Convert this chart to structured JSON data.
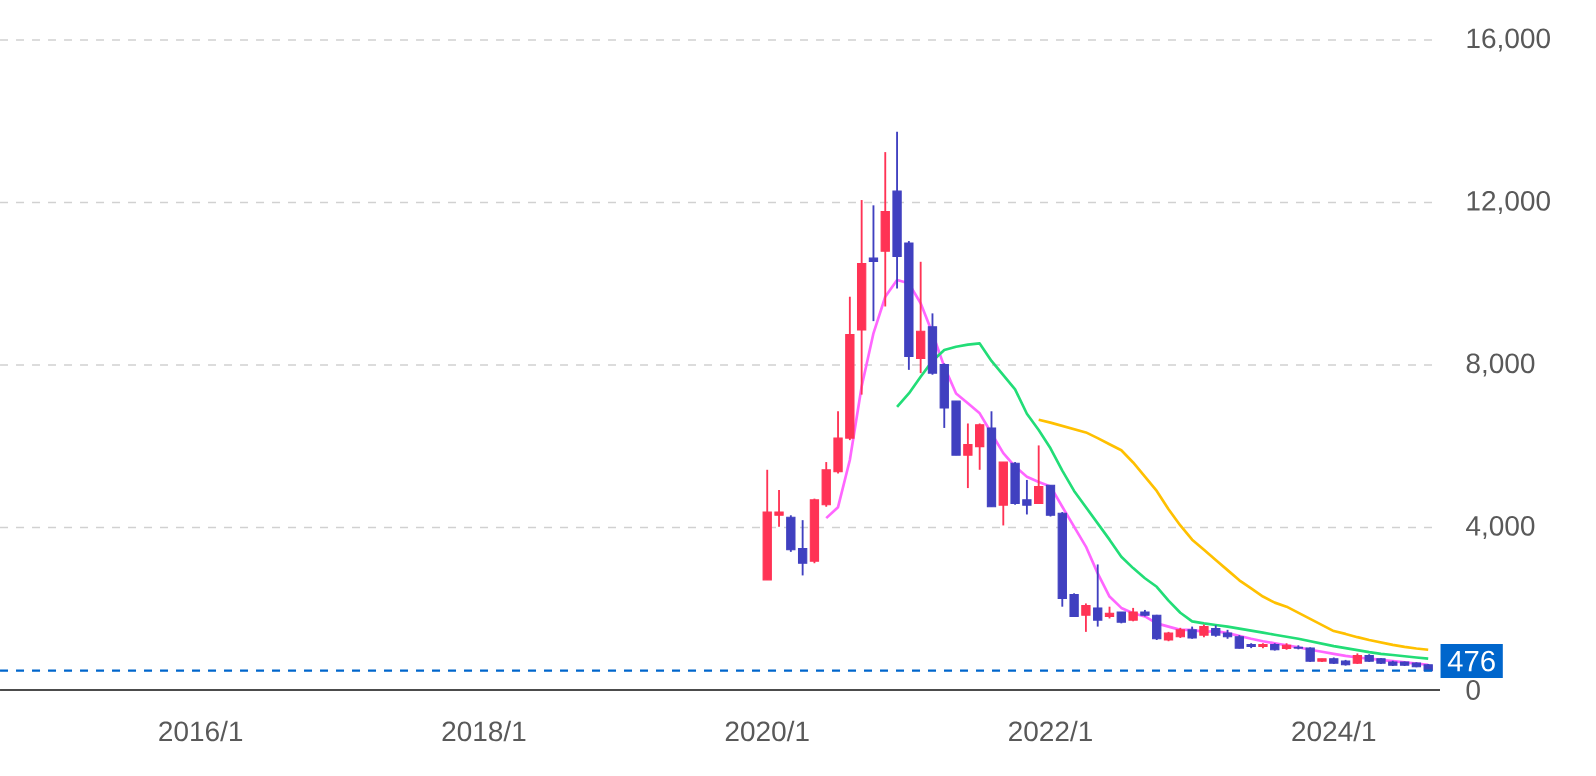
{
  "chart_data": {
    "type": "candlestick",
    "x": [
      "2020-01",
      "2020-02",
      "2020-03",
      "2020-04",
      "2020-05",
      "2020-06",
      "2020-07",
      "2020-08",
      "2020-09",
      "2020-10",
      "2020-11",
      "2020-12",
      "2021-01",
      "2021-02",
      "2021-03",
      "2021-04",
      "2021-05",
      "2021-06",
      "2021-07",
      "2021-08",
      "2021-09",
      "2021-10",
      "2021-11",
      "2021-12",
      "2022-01",
      "2022-02",
      "2022-03",
      "2022-04",
      "2022-05",
      "2022-06",
      "2022-07",
      "2022-08",
      "2022-09",
      "2022-10",
      "2022-11",
      "2022-12",
      "2023-01",
      "2023-02",
      "2023-03",
      "2023-04",
      "2023-05",
      "2023-06",
      "2023-07",
      "2023-08",
      "2023-09",
      "2023-10",
      "2023-11",
      "2023-12",
      "2024-01",
      "2024-02",
      "2024-03",
      "2024-04",
      "2024-05",
      "2024-06",
      "2024-07",
      "2024-08",
      "2024-09"
    ],
    "series": [
      {
        "ohlc": [
          [
            2710,
            5420,
            2710,
            4380
          ],
          [
            4300,
            4920,
            4020,
            4380
          ],
          [
            4250,
            4300,
            3400,
            3450
          ],
          [
            3480,
            4180,
            2820,
            3120
          ],
          [
            3170,
            4710,
            3120,
            4680
          ],
          [
            4560,
            5610,
            4510,
            5420
          ],
          [
            5370,
            6860,
            5330,
            6200
          ],
          [
            6200,
            9680,
            6150,
            8750
          ],
          [
            8860,
            12060,
            7270,
            10500
          ],
          [
            10630,
            11930,
            9080,
            10550
          ],
          [
            10800,
            13240,
            9440,
            11780
          ],
          [
            12280,
            13740,
            9880,
            10670
          ],
          [
            11000,
            11050,
            7880,
            8210
          ],
          [
            8160,
            10540,
            7800,
            8830
          ],
          [
            8940,
            9270,
            7760,
            7800
          ],
          [
            8010,
            8040,
            6450,
            6940
          ],
          [
            7110,
            7110,
            5780,
            5780
          ],
          [
            5780,
            6560,
            4970,
            6040
          ],
          [
            5990,
            6560,
            5420,
            6530
          ],
          [
            6450,
            6860,
            4510,
            4510
          ],
          [
            4550,
            5610,
            4050,
            5610
          ],
          [
            5580,
            5610,
            4560,
            4590
          ],
          [
            4680,
            5170,
            4320,
            4550
          ],
          [
            4590,
            6020,
            4590,
            5010
          ],
          [
            5040,
            5040,
            4270,
            4300
          ],
          [
            4350,
            4380,
            2050,
            2250
          ],
          [
            2350,
            2380,
            1810,
            1810
          ],
          [
            1840,
            2130,
            1430,
            2080
          ],
          [
            2020,
            3090,
            1560,
            1720
          ],
          [
            1810,
            2050,
            1760,
            1890
          ],
          [
            1920,
            1920,
            1640,
            1670
          ],
          [
            1720,
            2020,
            1690,
            1920
          ],
          [
            1920,
            1970,
            1810,
            1840
          ],
          [
            1840,
            1850,
            1230,
            1260
          ],
          [
            1230,
            1430,
            1200,
            1400
          ],
          [
            1310,
            1530,
            1280,
            1480
          ],
          [
            1480,
            1560,
            1260,
            1280
          ],
          [
            1350,
            1610,
            1300,
            1560
          ],
          [
            1510,
            1590,
            1310,
            1350
          ],
          [
            1400,
            1480,
            1260,
            1310
          ],
          [
            1310,
            1350,
            1020,
            1030
          ],
          [
            1120,
            1150,
            1030,
            1070
          ],
          [
            1070,
            1150,
            1030,
            1120
          ],
          [
            1120,
            1150,
            970,
            990
          ],
          [
            1020,
            1150,
            990,
            1100
          ],
          [
            1050,
            1100,
            1000,
            1030
          ],
          [
            1030,
            1050,
            690,
            710
          ],
          [
            710,
            770,
            690,
            770
          ],
          [
            770,
            800,
            640,
            660
          ],
          [
            710,
            740,
            600,
            620
          ],
          [
            660,
            900,
            640,
            850
          ],
          [
            850,
            880,
            690,
            710
          ],
          [
            770,
            790,
            640,
            660
          ],
          [
            690,
            720,
            590,
            610
          ],
          [
            690,
            700,
            590,
            610
          ],
          [
            660,
            680,
            560,
            570
          ],
          [
            620,
            640,
            470,
            476
          ]
        ],
        "colors": [
          "#ff3355",
          "#ff3355",
          "#4040c0",
          "#4040c0",
          "#ff3355",
          "#ff3355",
          "#ff3355",
          "#ff3355",
          "#ff3355",
          "#4040c0",
          "#ff3355",
          "#4040c0",
          "#4040c0",
          "#ff3355",
          "#4040c0",
          "#4040c0",
          "#4040c0",
          "#ff3355",
          "#ff3355",
          "#4040c0",
          "#ff3355",
          "#4040c0",
          "#4040c0",
          "#ff3355",
          "#4040c0",
          "#4040c0",
          "#4040c0",
          "#ff3355",
          "#4040c0",
          "#ff3355",
          "#4040c0",
          "#ff3355",
          "#4040c0",
          "#4040c0",
          "#ff3355",
          "#ff3355",
          "#4040c0",
          "#ff3355",
          "#4040c0",
          "#4040c0",
          "#4040c0",
          "#4040c0",
          "#ff3355",
          "#4040c0",
          "#ff3355",
          "#4040c0",
          "#4040c0",
          "#ff3355",
          "#4040c0",
          "#4040c0",
          "#ff3355",
          "#4040c0",
          "#4040c0",
          "#4040c0",
          "#4040c0",
          "#4040c0",
          "#4040c0"
        ]
      },
      {
        "type": "line",
        "color": "#ff66ff",
        "values": [
          null,
          null,
          null,
          null,
          null,
          4230,
          4500,
          5660,
          7470,
          8780,
          9680,
          10090,
          10010,
          9520,
          8780,
          7960,
          7300,
          7060,
          6810,
          6320,
          5830,
          5500,
          5250,
          5120,
          5010,
          4510,
          4020,
          3530,
          2870,
          2300,
          2020,
          1890,
          1810,
          1640,
          1560,
          1480,
          1480,
          1430,
          1450,
          1400,
          1330,
          1260,
          1200,
          1150,
          1100,
          1050,
          990,
          940,
          890,
          840,
          800,
          770,
          740,
          710,
          680,
          650,
          620
        ]
      },
      {
        "type": "line",
        "color": "#22dd77",
        "values": [
          null,
          null,
          null,
          null,
          null,
          null,
          null,
          null,
          null,
          null,
          null,
          6970,
          7300,
          7710,
          8100,
          8370,
          8450,
          8500,
          8530,
          8100,
          7750,
          7400,
          6800,
          6400,
          5950,
          5400,
          4900,
          4500,
          4100,
          3700,
          3280,
          3000,
          2750,
          2540,
          2200,
          1900,
          1690,
          1640,
          1600,
          1560,
          1510,
          1460,
          1410,
          1360,
          1310,
          1260,
          1200,
          1140,
          1080,
          1030,
          980,
          930,
          890,
          860,
          830,
          800,
          770
        ]
      },
      {
        "type": "line",
        "color": "#ffc000",
        "values": [
          null,
          null,
          null,
          null,
          null,
          null,
          null,
          null,
          null,
          null,
          null,
          null,
          null,
          null,
          null,
          null,
          null,
          null,
          null,
          null,
          null,
          null,
          null,
          6650,
          6580,
          6500,
          6420,
          6340,
          6200,
          6050,
          5900,
          5600,
          5250,
          4900,
          4450,
          4050,
          3700,
          3450,
          3200,
          2950,
          2700,
          2500,
          2300,
          2150,
          2050,
          1900,
          1750,
          1600,
          1450,
          1380,
          1300,
          1230,
          1170,
          1110,
          1060,
          1020,
          990
        ]
      }
    ],
    "xlim": [
      "2014-08",
      "2024-10"
    ],
    "xticks": [
      {
        "value": "2016-01",
        "label": "2016/1"
      },
      {
        "value": "2018-01",
        "label": "2018/1"
      },
      {
        "value": "2020-01",
        "label": "2020/1"
      },
      {
        "value": "2022-01",
        "label": "2022/1"
      },
      {
        "value": "2024-01",
        "label": "2024/1"
      }
    ],
    "ylim": [
      0,
      16000
    ],
    "yticks": [
      0,
      {
        "value": 4000,
        "label": "4,000"
      },
      {
        "value": 8000,
        "label": "8,000"
      },
      {
        "value": 12000,
        "label": "12,000"
      },
      {
        "value": 16000,
        "label": "16,000"
      }
    ],
    "grid": "y",
    "ref_lines": [
      {
        "axis": "y",
        "value": 476,
        "label": "476",
        "color": "#0066cc",
        "line_style": "dashed"
      }
    ]
  }
}
